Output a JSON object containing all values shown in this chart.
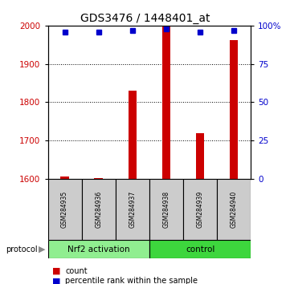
{
  "title": "GDS3476 / 1448401_at",
  "samples": [
    "GSM284935",
    "GSM284936",
    "GSM284937",
    "GSM284938",
    "GSM284939",
    "GSM284940"
  ],
  "counts": [
    1607,
    1603,
    1830,
    2000,
    1720,
    1963
  ],
  "percentile_ranks": [
    96,
    96,
    97,
    98,
    96,
    97
  ],
  "ylim_left": [
    1600,
    2000
  ],
  "ylim_right": [
    0,
    100
  ],
  "yticks_left": [
    1600,
    1700,
    1800,
    1900,
    2000
  ],
  "yticks_right": [
    0,
    25,
    50,
    75,
    100
  ],
  "ytick_labels_right": [
    "0",
    "25",
    "50",
    "75",
    "100%"
  ],
  "groups": [
    {
      "label": "Nrf2 activation",
      "start": 0,
      "end": 3
    },
    {
      "label": "control",
      "start": 3,
      "end": 6
    }
  ],
  "bar_color": "#CC0000",
  "dot_color": "#0000CC",
  "bar_width": 0.25,
  "background_color": "#ffffff",
  "sample_box_color": "#cccccc",
  "group_colors": [
    "#90EE90",
    "#3DD63D"
  ],
  "protocol_label": "protocol",
  "legend_count_label": "count",
  "legend_pct_label": "percentile rank within the sample"
}
